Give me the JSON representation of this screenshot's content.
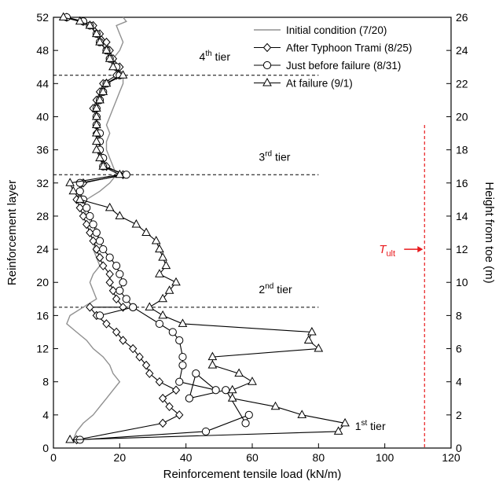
{
  "chart_data": {
    "type": "line",
    "xlabel": "Reinforcement tensile load (kN/m)",
    "ylabel": "Reinforcement layer",
    "y2label": "Height from toe (m)",
    "xlim": [
      0,
      120
    ],
    "ylim": [
      0,
      52
    ],
    "y2lim": [
      0,
      26
    ],
    "xticks": [
      "0",
      "20",
      "40",
      "60",
      "80",
      "100",
      "120"
    ],
    "yticks": [
      "0",
      "4",
      "8",
      "12",
      "16",
      "20",
      "24",
      "28",
      "32",
      "36",
      "40",
      "44",
      "48",
      "52"
    ],
    "y2ticks": [
      "0",
      "2",
      "4",
      "6",
      "8",
      "10",
      "12",
      "14",
      "16",
      "18",
      "20",
      "22",
      "24",
      "26"
    ],
    "grid": false,
    "legend_position": "top-right",
    "tiers": [
      {
        "label": "1",
        "sup": "st",
        "suffix": " tier",
        "layer": null,
        "label_x": 91,
        "label_y": 2.2
      },
      {
        "label": "2",
        "sup": "nd",
        "suffix": " tier",
        "layer": 17,
        "line_to_x": 80,
        "label_x": 62,
        "label_y": 18.7
      },
      {
        "label": "3",
        "sup": "rd",
        "suffix": " tier",
        "layer": 33,
        "line_to_x": 80,
        "label_x": 62,
        "label_y": 34.7
      },
      {
        "label": "4",
        "sup": "th",
        "suffix": " tier",
        "layer": 45,
        "line_to_x": 80,
        "label_x": 44,
        "label_y": 46.8
      }
    ],
    "ultimate_line": {
      "label_main": "T",
      "label_sub": "ult",
      "x": 112,
      "y_top": 39,
      "arrow_y": 24,
      "color": "#e8191c"
    },
    "series": [
      {
        "name": "Initial condition (7/20)",
        "marker": "none",
        "color": "#909090",
        "x": [
          6,
          7,
          9,
          12,
          14,
          16,
          18,
          20,
          18,
          17,
          15,
          12,
          10,
          7,
          4,
          5,
          9,
          13,
          12,
          11,
          12,
          14,
          13,
          12,
          13,
          14,
          12,
          10,
          9,
          10,
          14,
          17,
          19,
          18,
          17,
          16,
          16,
          17,
          16,
          17,
          18,
          19,
          20,
          21,
          21,
          19,
          18,
          20,
          21,
          20,
          19,
          22,
          21
        ],
        "y": [
          1,
          2,
          3,
          4,
          5,
          6,
          7,
          8,
          9,
          10,
          11,
          12,
          13,
          14,
          15,
          16,
          17,
          18,
          19,
          20,
          21,
          22,
          23,
          24,
          25,
          26,
          27,
          28,
          29,
          30,
          31,
          32,
          33,
          34,
          35,
          36,
          37,
          38,
          39,
          40,
          41,
          42,
          43,
          44,
          45,
          46,
          47,
          48,
          49,
          50,
          51,
          51.5,
          52
        ]
      },
      {
        "name": "After Typhoon Trami (8/25)",
        "marker": "diamond",
        "color": "#000000",
        "x": [
          7,
          33,
          38,
          35,
          33,
          37,
          32,
          29,
          28,
          26,
          24,
          21,
          19,
          16,
          13,
          11,
          21,
          19,
          18,
          17,
          17,
          15,
          14,
          13,
          12,
          11,
          10,
          9,
          8,
          7,
          8,
          9,
          21,
          16,
          15,
          14,
          14,
          13,
          13,
          13,
          12,
          13,
          14,
          15,
          19,
          20,
          18,
          17,
          16,
          14,
          12,
          9,
          4
        ],
        "y": [
          1,
          3,
          4,
          5,
          6,
          7,
          8,
          9,
          10,
          11,
          12,
          13,
          14,
          15,
          16,
          17,
          17,
          18,
          19,
          20,
          21,
          22,
          23,
          24,
          25,
          26,
          27,
          28,
          29,
          30,
          31,
          32,
          33,
          34,
          35,
          36,
          37,
          38,
          39,
          40,
          41,
          42,
          43,
          44,
          45,
          46,
          47,
          48,
          49,
          50,
          51,
          51.5,
          52
        ]
      },
      {
        "name": "Just before failure (8/31)",
        "marker": "circle",
        "color": "#000000",
        "x": [
          8,
          46,
          59,
          58,
          52,
          41,
          43,
          49,
          38,
          39,
          39,
          38,
          36,
          32,
          24,
          14,
          24,
          22,
          20,
          21,
          20,
          19,
          17,
          15,
          14,
          13,
          12,
          11,
          10,
          9,
          8,
          8,
          22,
          15,
          15,
          14,
          14,
          14,
          13,
          13,
          13,
          14,
          15,
          16,
          20,
          19,
          17,
          16,
          14,
          13,
          11,
          9,
          4
        ],
        "y": [
          1,
          2,
          4,
          3,
          7,
          6,
          9,
          7,
          8,
          10,
          11,
          13,
          14,
          15,
          17,
          16,
          17,
          18,
          19,
          20,
          21,
          22,
          23,
          24,
          25,
          26,
          27,
          28,
          29,
          30,
          31,
          32,
          33,
          34,
          35,
          36,
          37,
          38,
          39,
          40,
          41,
          42,
          43,
          44,
          45,
          46,
          47,
          48,
          49,
          50,
          51,
          51.5,
          52
        ]
      },
      {
        "name": "At failure (9/1)",
        "marker": "triangle",
        "color": "#000000",
        "x": [
          5,
          86,
          88,
          75,
          67,
          54,
          54,
          60,
          56,
          48,
          48,
          80,
          77,
          78,
          39,
          33,
          29,
          33,
          35,
          37,
          32,
          34,
          33,
          32,
          31,
          28,
          25,
          20,
          17,
          8,
          6,
          5,
          20,
          15,
          14,
          13,
          13,
          13,
          13,
          13,
          13,
          14,
          15,
          16,
          21,
          18,
          17,
          16,
          14,
          13,
          11,
          8,
          3
        ],
        "y": [
          1,
          2,
          3,
          4,
          5,
          6,
          7,
          8,
          9,
          10,
          11,
          12,
          13,
          14,
          15,
          16,
          17,
          18,
          19,
          20,
          21,
          22,
          23,
          24,
          25,
          26,
          27,
          28,
          29,
          30,
          31,
          32,
          33,
          34,
          35,
          36,
          37,
          38,
          39,
          40,
          41,
          42,
          43,
          44,
          45,
          46,
          47,
          48,
          49,
          50,
          51,
          51.5,
          52
        ]
      }
    ]
  }
}
